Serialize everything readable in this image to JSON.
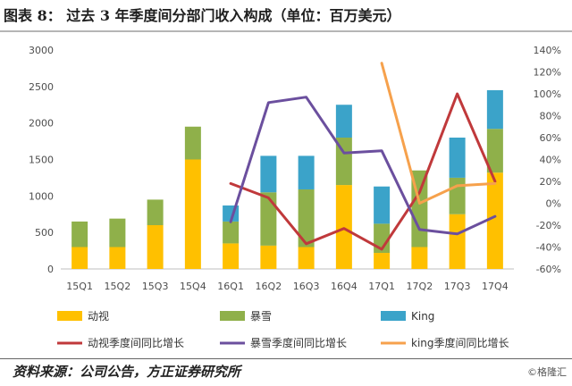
{
  "header": {
    "title": "图表 8：  过去 3 年季度间分部门收入构成（单位：百万美元）"
  },
  "footer": {
    "source": "资料来源：公司公告，方正证券研究所",
    "watermark": "©格隆汇"
  },
  "chart_data": {
    "type": "bar",
    "title": "",
    "categories": [
      "15Q1",
      "15Q2",
      "15Q3",
      "15Q4",
      "16Q1",
      "16Q2",
      "16Q3",
      "16Q4",
      "17Q1",
      "17Q2",
      "17Q3",
      "17Q4"
    ],
    "stacked_series": [
      {
        "name": "动视",
        "color": "#ffc000",
        "values": [
          300,
          300,
          600,
          1500,
          350,
          320,
          300,
          1150,
          220,
          300,
          750,
          1320
        ]
      },
      {
        "name": "暴雪",
        "color": "#8fb04a",
        "values": [
          350,
          390,
          350,
          450,
          300,
          730,
          790,
          650,
          400,
          1050,
          500,
          600
        ]
      },
      {
        "name": "King",
        "color": "#3ba3c9",
        "values": [
          0,
          0,
          0,
          0,
          220,
          500,
          460,
          450,
          510,
          0,
          550,
          530
        ]
      }
    ],
    "line_series": [
      {
        "name": "动视季度间同比增长",
        "color": "#c0393b",
        "points": [
          [
            4,
            18
          ],
          [
            5,
            5
          ],
          [
            6,
            -37
          ],
          [
            7,
            -23
          ],
          [
            8,
            -42
          ],
          [
            9,
            10
          ],
          [
            10,
            100
          ],
          [
            11,
            20
          ]
        ]
      },
      {
        "name": "暴雪季度间同比增长",
        "color": "#6b4f9e",
        "points": [
          [
            4,
            -17
          ],
          [
            5,
            92
          ],
          [
            6,
            97
          ],
          [
            7,
            46
          ],
          [
            8,
            48
          ],
          [
            9,
            -24
          ],
          [
            10,
            -28
          ],
          [
            11,
            -12
          ]
        ]
      },
      {
        "name": "king季度间同比增长",
        "color": "#f6a14c",
        "points": [
          [
            8,
            128
          ],
          [
            9,
            0
          ],
          [
            10,
            16
          ],
          [
            11,
            18
          ]
        ]
      }
    ],
    "y_left": {
      "min": 0,
      "max": 3000,
      "ticks": [
        0,
        500,
        1000,
        1500,
        2000,
        2500,
        3000
      ]
    },
    "y_right": {
      "min": -60,
      "max": 140,
      "ticks": [
        "-60%",
        "-40%",
        "-20%",
        "0%",
        "20%",
        "40%",
        "60%",
        "80%",
        "100%",
        "120%",
        "140%"
      ]
    },
    "legend": {
      "position": "bottom",
      "entries": [
        "动视",
        "暴雪",
        "King",
        "动视季度间同比增长",
        "暴雪季度间同比增长",
        "king季度间同比增长"
      ]
    },
    "grid": false
  }
}
